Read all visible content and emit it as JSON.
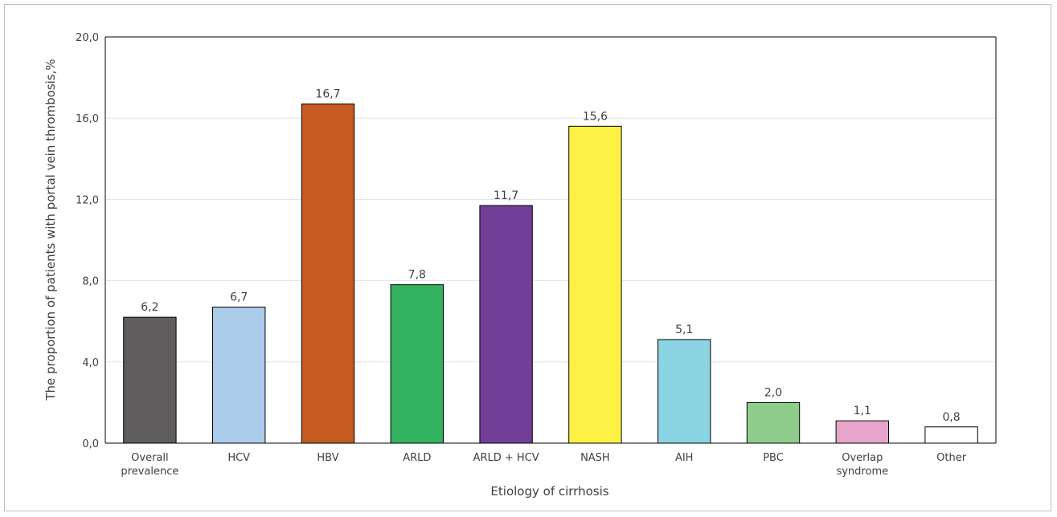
{
  "chart_data": {
    "type": "bar",
    "title": "",
    "xlabel": "Etiology of cirrhosis",
    "ylabel": "The proportion of patients with portal vein thrombosis,%",
    "ylim": [
      0,
      20
    ],
    "yticks": [
      "0,0",
      "4,0",
      "8,0",
      "12,0",
      "16,0",
      "20,0"
    ],
    "ytick_values": [
      0,
      4,
      8,
      12,
      16,
      20
    ],
    "grid": true,
    "categories": [
      [
        "Overall",
        "prevalence"
      ],
      [
        "HCV"
      ],
      [
        "HBV"
      ],
      [
        "ARLD"
      ],
      [
        "ARLD + HCV"
      ],
      [
        "NASH"
      ],
      [
        "AIH"
      ],
      [
        "PBC"
      ],
      [
        "Overlap",
        "syndrome"
      ],
      [
        "Other"
      ]
    ],
    "values": [
      6.2,
      6.7,
      16.7,
      7.8,
      11.7,
      15.6,
      5.1,
      2.0,
      1.1,
      0.8
    ],
    "value_labels": [
      "6,2",
      "6,7",
      "16,7",
      "7,8",
      "11,7",
      "15,6",
      "5,1",
      "2,0",
      "1,1",
      "0,8"
    ],
    "colors": [
      "#5f5d5e",
      "#acccec",
      "#c55b20",
      "#33b35f",
      "#713e98",
      "#fef146",
      "#8bd4e3",
      "#8fcd8d",
      "#e7a5cc",
      "#ffffff"
    ]
  }
}
